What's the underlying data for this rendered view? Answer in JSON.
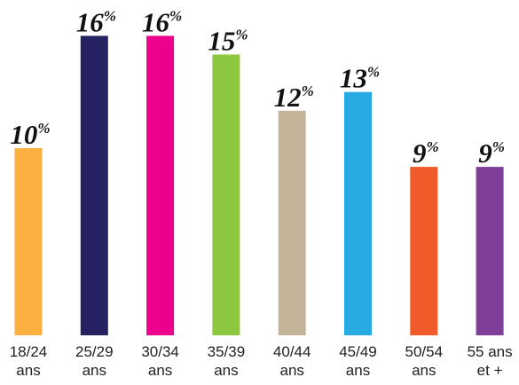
{
  "chart_data": {
    "type": "bar",
    "categories": [
      [
        "18/24",
        "ans"
      ],
      [
        "25/29",
        "ans"
      ],
      [
        "30/34",
        "ans"
      ],
      [
        "35/39",
        "ans"
      ],
      [
        "40/44",
        "ans"
      ],
      [
        "45/49",
        "ans"
      ],
      [
        "50/54",
        "ans"
      ],
      [
        "55 ans",
        "et +"
      ]
    ],
    "values": [
      10,
      16,
      16,
      15,
      12,
      13,
      9,
      9
    ],
    "value_labels": [
      "10",
      "16",
      "16",
      "15",
      "12",
      "13",
      "9",
      "9"
    ],
    "unit": "%",
    "colors": [
      "#FBB040",
      "#262262",
      "#EC008C",
      "#8DC63F",
      "#C4B59A",
      "#27AAE1",
      "#F15A29",
      "#7F3F98"
    ],
    "ylim": [
      0,
      16
    ],
    "grid": false,
    "legend": "none"
  }
}
